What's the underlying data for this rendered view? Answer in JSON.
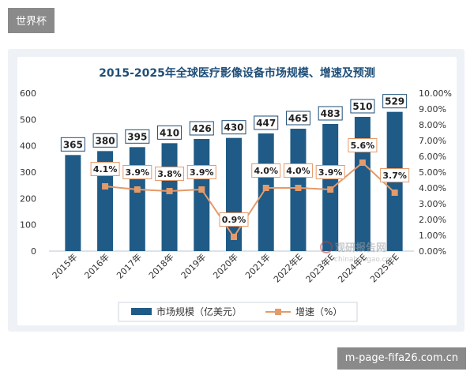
{
  "top_tag": "世界杯",
  "footer_tag": "m-page-fifa26.com.cn",
  "watermark": {
    "brand": "观研报告网",
    "url": "chinabaogao.com"
  },
  "colors": {
    "bar": "#1f5b86",
    "line": "#e59a6a",
    "marker": "#e59a6a",
    "label_border": "#1f4e79",
    "title": "#1f4e79"
  },
  "chart_data": {
    "type": "bar",
    "title": "2015-2025年全球医疗影像设备市场规模、增速及预测",
    "categories": [
      "2015年",
      "2016年",
      "2017年",
      "2018年",
      "2019年",
      "2020年",
      "2021年",
      "2022年E",
      "2023年E",
      "2024年E",
      "2025年E"
    ],
    "series": [
      {
        "name": "市场规模（亿美元）",
        "type": "bar",
        "axis": "left",
        "values": [
          365,
          380,
          395,
          410,
          426,
          430,
          447,
          465,
          483,
          510,
          529
        ],
        "labels": [
          "365",
          "380",
          "395",
          "410",
          "426",
          "430",
          "447",
          "465",
          "483",
          "510",
          "529"
        ]
      },
      {
        "name": "增速（%）",
        "type": "line",
        "axis": "right",
        "values": [
          null,
          4.1,
          3.9,
          3.8,
          3.9,
          0.9,
          4.0,
          4.0,
          3.9,
          5.6,
          3.7
        ],
        "labels": [
          "",
          "4.1%",
          "3.9%",
          "3.8%",
          "3.9%",
          "0.9%",
          "4.0%",
          "4.0%",
          "3.9%",
          "5.6%",
          "3.7%"
        ]
      }
    ],
    "ylim_left": [
      0,
      600
    ],
    "yticks_left": [
      "0",
      "100",
      "200",
      "300",
      "400",
      "500",
      "600"
    ],
    "ylim_right": [
      0,
      10
    ],
    "yticks_right": [
      "0.00%",
      "1.00%",
      "2.00%",
      "3.00%",
      "4.00%",
      "5.00%",
      "6.00%",
      "7.00%",
      "8.00%",
      "9.00%",
      "10.00%"
    ],
    "grid": false,
    "legend_position": "bottom"
  }
}
